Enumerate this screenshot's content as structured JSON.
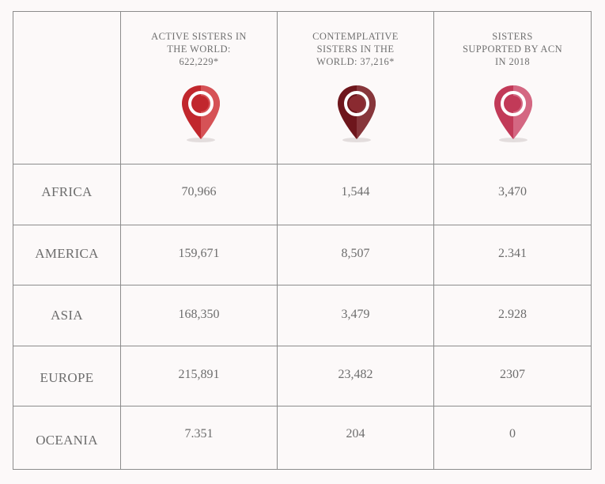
{
  "headers": [
    {
      "line1": "ACTIVE SISTERS IN",
      "line2": "THE WORLD:",
      "line3": "622,229*",
      "pin_color": "#c1272d",
      "pin_dark": "#9a1d22",
      "icon": "location-pin-icon"
    },
    {
      "line1": "CONTEMPLATIVE",
      "line2": "SISTERS IN THE",
      "line3": "WORLD: 37,216*",
      "pin_color": "#7a1c22",
      "pin_dark": "#5a1218",
      "icon": "location-pin-icon"
    },
    {
      "line1": "SISTERS",
      "line2": "SUPPORTED BY ACN",
      "line3": "IN 2018",
      "pin_color": "#c8405e",
      "pin_dark": "#a52f4a",
      "icon": "location-pin-icon"
    }
  ],
  "rows": [
    {
      "region": "AFRICA",
      "values": [
        "70,966",
        "1,544",
        "3,470"
      ]
    },
    {
      "region": "AMERICA",
      "values": [
        "159,671",
        "8,507",
        "2.341"
      ]
    },
    {
      "region": "ASIA",
      "values": [
        "168,350",
        "3,479",
        "2.928"
      ]
    },
    {
      "region": "EUROPE",
      "values": [
        "215,891",
        "23,482",
        "2307"
      ]
    },
    {
      "region": "OCEANIA",
      "values": [
        "7.351",
        "204",
        "0"
      ]
    }
  ],
  "colors": {
    "background": "#fcf9f9",
    "grid": "#8c8c8c",
    "text": "#6d6d6d"
  }
}
